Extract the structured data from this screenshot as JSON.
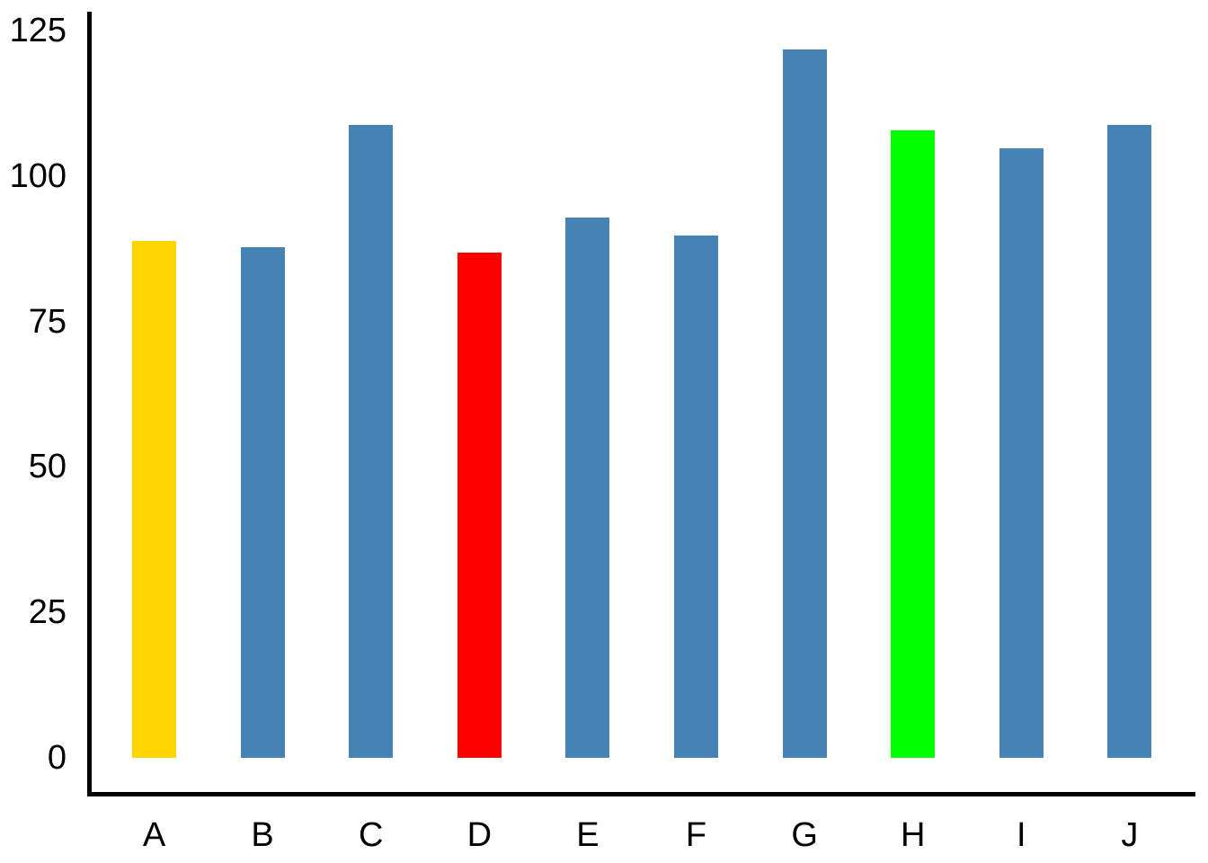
{
  "chart_data": {
    "type": "bar",
    "title": "",
    "xlabel": "",
    "ylabel": "",
    "categories": [
      "A",
      "B",
      "C",
      "D",
      "E",
      "F",
      "G",
      "H",
      "I",
      "J"
    ],
    "values": [
      89,
      88,
      109,
      87,
      93,
      90,
      122,
      108,
      105,
      109
    ],
    "bar_colors": [
      "#FFD500",
      "#4682B4",
      "#4682B4",
      "#FF0000",
      "#4682B4",
      "#4682B4",
      "#4682B4",
      "#00FF00",
      "#4682B4",
      "#4682B4"
    ],
    "default_bar_color": "#4682B4",
    "highlight_colors": {
      "A": "#FFD500",
      "D": "#FF0000",
      "H": "#00FF00"
    },
    "yticks": [
      0,
      25,
      50,
      75,
      100,
      125
    ],
    "ylim": [
      0,
      128
    ],
    "grid": false,
    "legend": false,
    "axis_color": "#000000",
    "tick_text_color": "#000000",
    "background_color": "#ffffff"
  }
}
